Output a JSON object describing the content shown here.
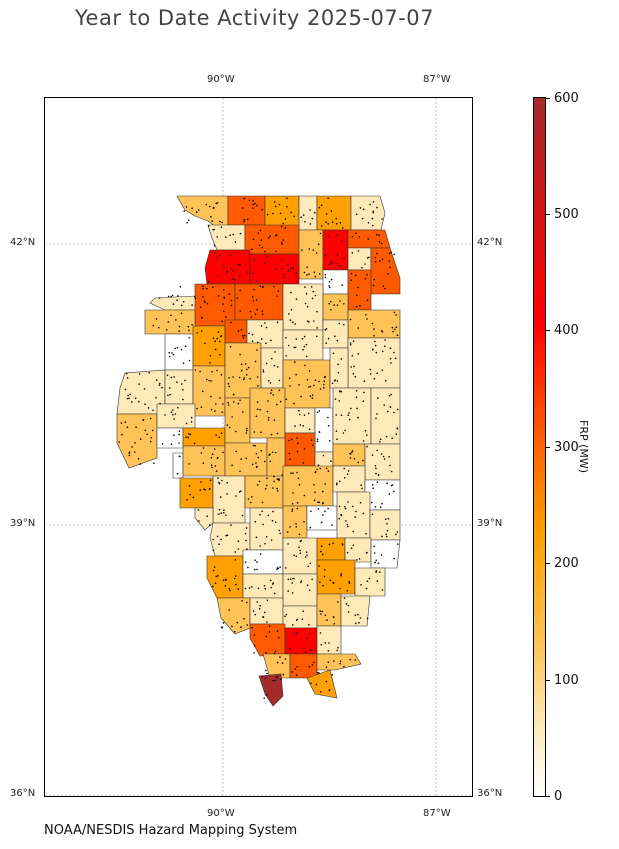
{
  "title": "Year to Date Activity 2025-07-07",
  "credit": "NOAA/NESDIS Hazard Mapping System",
  "axes": {
    "top_ticks": [
      "90°W",
      "87°W"
    ],
    "bottom_ticks": [
      "90°W",
      "87°W"
    ],
    "left_ticks": [
      "42°N",
      "39°N",
      "36°N"
    ],
    "right_ticks": [
      "42°N",
      "39°N",
      "36°N"
    ]
  },
  "colorbar": {
    "label": "FRP (MW)",
    "min": 0,
    "max": 600,
    "ticks": [
      "0",
      "100",
      "200",
      "300",
      "400",
      "500",
      "600"
    ],
    "colors": [
      "#ffffff",
      "#ffe9b8",
      "#ffc256",
      "#ff9f00",
      "#ff5a00",
      "#ff0000",
      "#a52a2a"
    ]
  },
  "map": {
    "region": "Illinois counties",
    "fill_scale": "FRP (MW)",
    "points": "fire detections"
  }
}
